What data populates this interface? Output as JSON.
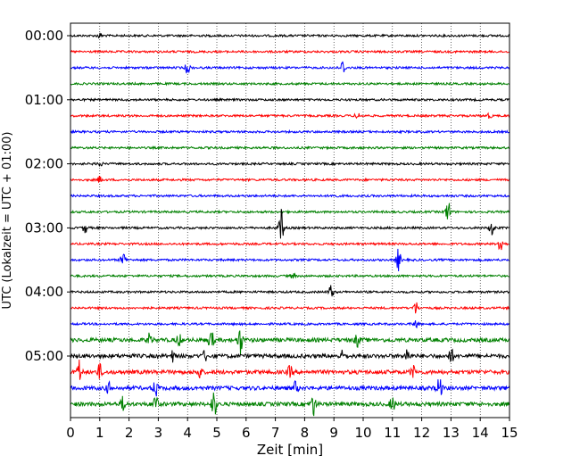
{
  "chart_data": {
    "type": "line",
    "title": "",
    "xlabel": "Zeit  [min]",
    "ylabel": "UTC (Lokalzeit = UTC + 01:00)",
    "xlim": [
      0,
      15
    ],
    "x_ticks": [
      "0",
      "1",
      "2",
      "3",
      "4",
      "5",
      "6",
      "7",
      "8",
      "9",
      "10",
      "11",
      "12",
      "13",
      "14",
      "15"
    ],
    "y_tick_labels": [
      "00:00",
      "01:00",
      "02:00",
      "03:00",
      "04:00",
      "05:00"
    ],
    "rows_per_hour": 4,
    "minutes_per_row": 15,
    "grid": "vertical-dotted",
    "trace_colors": [
      "#000000",
      "#ff0000",
      "#0000ff",
      "#008000"
    ],
    "rows": [
      {
        "start": "00:00",
        "color": "#000000",
        "events": [
          {
            "t": 1.0,
            "amp": 0.2
          }
        ]
      },
      {
        "start": "00:15",
        "color": "#ff0000",
        "events": []
      },
      {
        "start": "00:30",
        "color": "#0000ff",
        "events": [
          {
            "t": 4.0,
            "amp": 0.45
          },
          {
            "t": 9.3,
            "amp": 0.6
          }
        ]
      },
      {
        "start": "00:45",
        "color": "#008000",
        "events": []
      },
      {
        "start": "01:00",
        "color": "#000000",
        "events": []
      },
      {
        "start": "01:15",
        "color": "#ff0000",
        "events": [
          {
            "t": 9.8,
            "amp": 0.25
          },
          {
            "t": 14.3,
            "amp": 0.2
          }
        ]
      },
      {
        "start": "01:30",
        "color": "#0000ff",
        "events": []
      },
      {
        "start": "01:45",
        "color": "#008000",
        "events": []
      },
      {
        "start": "02:00",
        "color": "#000000",
        "events": [
          {
            "t": 1.0,
            "amp": 0.2
          }
        ]
      },
      {
        "start": "02:15",
        "color": "#ff0000",
        "events": [
          {
            "t": 1.0,
            "amp": 0.25
          }
        ]
      },
      {
        "start": "02:30",
        "color": "#0000ff",
        "events": [
          {
            "t": 9.0,
            "amp": 0.2
          }
        ]
      },
      {
        "start": "02:45",
        "color": "#008000",
        "events": [
          {
            "t": 12.9,
            "amp": 0.9
          }
        ]
      },
      {
        "start": "03:00",
        "color": "#000000",
        "events": [
          {
            "t": 0.5,
            "amp": 0.4
          },
          {
            "t": 7.2,
            "amp": 1.5
          },
          {
            "t": 14.4,
            "amp": 0.7
          }
        ]
      },
      {
        "start": "03:15",
        "color": "#ff0000",
        "events": [
          {
            "t": 14.7,
            "amp": 0.9
          }
        ]
      },
      {
        "start": "03:30",
        "color": "#0000ff",
        "events": [
          {
            "t": 1.8,
            "amp": 0.7
          },
          {
            "t": 11.2,
            "amp": 0.9
          }
        ]
      },
      {
        "start": "03:45",
        "color": "#008000",
        "events": [
          {
            "t": 7.6,
            "amp": 0.2
          }
        ]
      },
      {
        "start": "04:00",
        "color": "#000000",
        "events": [
          {
            "t": 8.9,
            "amp": 0.6
          }
        ]
      },
      {
        "start": "04:15",
        "color": "#ff0000",
        "events": [
          {
            "t": 11.8,
            "amp": 0.5
          }
        ]
      },
      {
        "start": "04:30",
        "color": "#0000ff",
        "events": [
          {
            "t": 11.8,
            "amp": 0.4
          }
        ]
      },
      {
        "start": "04:45",
        "color": "#008000",
        "events": [
          {
            "t": 2.7,
            "amp": 0.5
          },
          {
            "t": 3.7,
            "amp": 0.5
          },
          {
            "t": 4.8,
            "amp": 0.9
          },
          {
            "t": 5.8,
            "amp": 1.1
          },
          {
            "t": 9.8,
            "amp": 0.5
          }
        ]
      },
      {
        "start": "05:00",
        "color": "#000000",
        "events": [
          {
            "t": 3.5,
            "amp": 0.4
          },
          {
            "t": 4.6,
            "amp": 0.4
          },
          {
            "t": 9.3,
            "amp": 0.4
          },
          {
            "t": 11.5,
            "amp": 0.6
          },
          {
            "t": 13.0,
            "amp": 0.6
          }
        ]
      },
      {
        "start": "05:15",
        "color": "#ff0000",
        "events": [
          {
            "t": 0.3,
            "amp": 0.9
          },
          {
            "t": 1.0,
            "amp": 0.6
          },
          {
            "t": 4.4,
            "amp": 0.5
          },
          {
            "t": 7.5,
            "amp": 0.5
          },
          {
            "t": 11.7,
            "amp": 0.5
          }
        ]
      },
      {
        "start": "05:30",
        "color": "#0000ff",
        "events": [
          {
            "t": 1.3,
            "amp": 0.4
          },
          {
            "t": 2.9,
            "amp": 0.7
          },
          {
            "t": 7.7,
            "amp": 0.5
          },
          {
            "t": 12.6,
            "amp": 1.0
          }
        ]
      },
      {
        "start": "05:45",
        "color": "#008000",
        "events": [
          {
            "t": 1.8,
            "amp": 0.6
          },
          {
            "t": 2.9,
            "amp": 0.8
          },
          {
            "t": 4.9,
            "amp": 1.1
          },
          {
            "t": 8.3,
            "amp": 0.9
          },
          {
            "t": 11.0,
            "amp": 0.6
          }
        ]
      }
    ]
  }
}
